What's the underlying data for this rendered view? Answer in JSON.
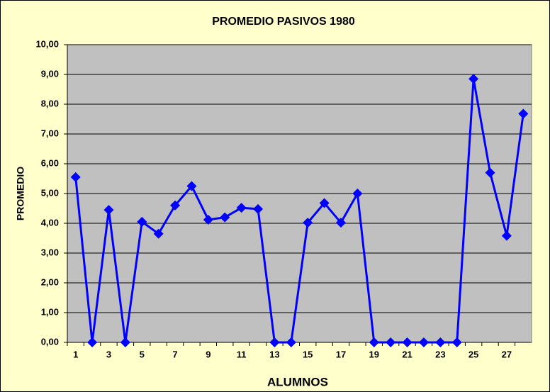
{
  "chart_data": {
    "type": "line",
    "title": "PROMEDIO PASIVOS 1980",
    "x_label": "ALUMNOS",
    "y_label": "PROMEDIO",
    "categories": [
      1,
      null,
      3,
      null,
      5,
      null,
      7,
      null,
      9,
      null,
      11,
      null,
      13,
      null,
      15,
      null,
      17,
      null,
      19,
      null,
      21,
      null,
      23,
      null,
      25,
      null,
      27,
      null
    ],
    "series": [
      {
        "color": "#0000ff",
        "values": [
          5.55,
          0,
          4.45,
          0,
          4.05,
          3.65,
          4.6,
          5.25,
          4.12,
          4.2,
          4.52,
          4.48,
          0,
          0,
          4.02,
          4.68,
          4.02,
          5.0,
          0,
          0,
          0,
          0,
          0,
          0,
          8.85,
          5.7,
          3.58,
          7.68
        ]
      }
    ],
    "ylim": [
      0,
      10
    ],
    "yticks": [
      {
        "value": 0,
        "label": "0,00"
      },
      {
        "value": 1,
        "label": "1,00"
      },
      {
        "value": 2,
        "label": "2,00"
      },
      {
        "value": 3,
        "label": "3,00"
      },
      {
        "value": 4,
        "label": "4,00"
      },
      {
        "value": 5,
        "label": "5,00"
      },
      {
        "value": 6,
        "label": "6,00"
      },
      {
        "value": 7,
        "label": "7,00"
      },
      {
        "value": 8,
        "label": "8,00"
      },
      {
        "value": 9,
        "label": "9,00"
      },
      {
        "value": 10,
        "label": "10,00"
      }
    ],
    "grid": true
  }
}
